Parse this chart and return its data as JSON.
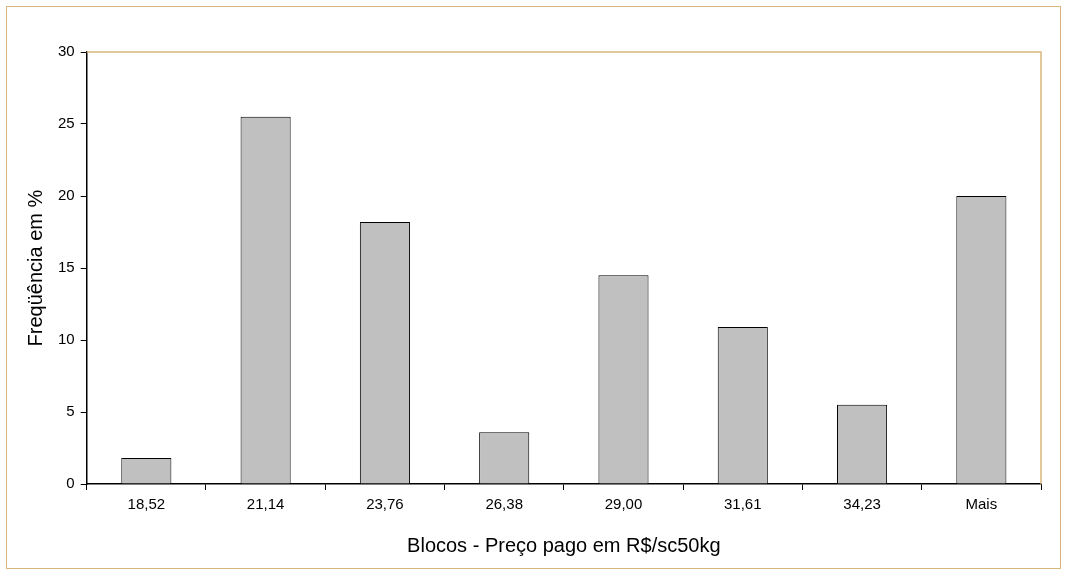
{
  "chart_data": {
    "type": "bar",
    "xlabel": "Blocos - Preço pago em R$/sc50kg",
    "ylabel": "Freqüência em %",
    "categories": [
      "18,52",
      "21,14",
      "23,76",
      "26,38",
      "29,00",
      "31,61",
      "34,23",
      "Mais"
    ],
    "values": [
      1.8,
      25.5,
      18.2,
      3.6,
      14.5,
      10.9,
      5.5,
      20.0
    ],
    "color": "#c0c0c0",
    "ylim": [
      0,
      30
    ],
    "yticks": [
      0,
      5,
      10,
      15,
      20,
      25,
      30
    ],
    "grid": false,
    "legend": false
  }
}
